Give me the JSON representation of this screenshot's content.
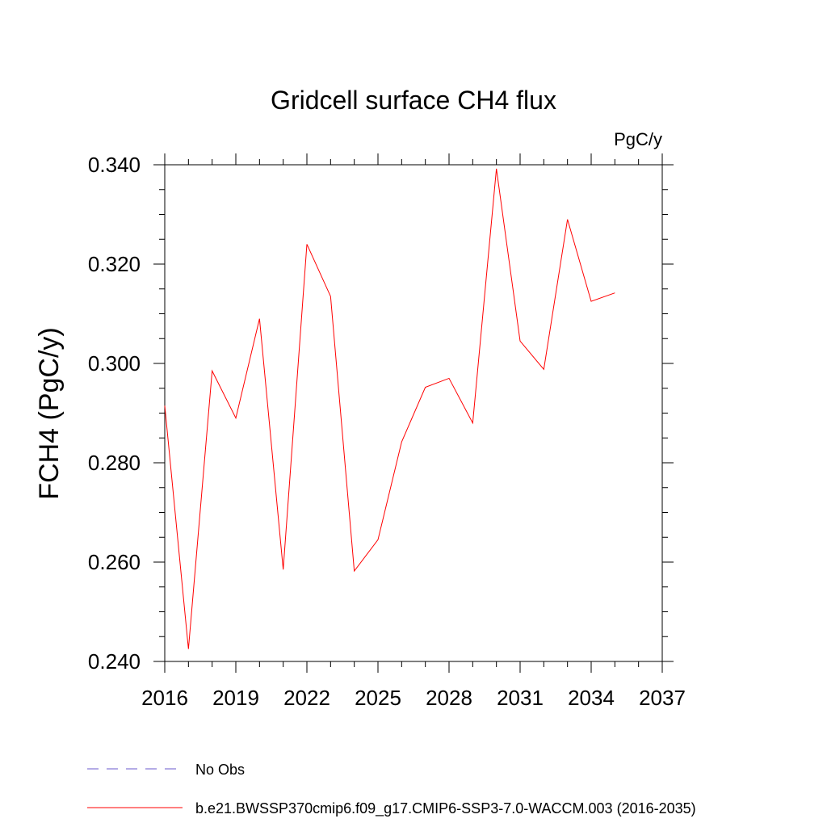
{
  "chart_data": {
    "type": "line",
    "title": "Gridcell surface CH4 flux",
    "units": "PgC/y",
    "ylabel": "FCH4  (PgC/y)",
    "xlabel": "",
    "xlim": [
      2016,
      2037
    ],
    "ylim": [
      0.24,
      0.34
    ],
    "x_ticks": [
      "2016",
      "2019",
      "2022",
      "2025",
      "2028",
      "2031",
      "2034",
      "2037"
    ],
    "y_ticks": [
      "0.240",
      "0.260",
      "0.280",
      "0.300",
      "0.320",
      "0.340"
    ],
    "grid": false,
    "legend_position": "bottom-left",
    "series": [
      {
        "name": "b.e21.BWSSP370cmip6.f09_g17.CMIP6-SSP3-7.0-WACCM.003 (2016-2035)",
        "color": "#ff0000",
        "style": "solid",
        "x": [
          2016,
          2017,
          2018,
          2019,
          2020,
          2021,
          2022,
          2023,
          2024,
          2025,
          2026,
          2027,
          2028,
          2029,
          2030,
          2031,
          2032,
          2033,
          2034,
          2035
        ],
        "y": [
          0.2915,
          0.2425,
          0.2985,
          0.289,
          0.309,
          0.2585,
          0.324,
          0.3135,
          0.2582,
          0.2645,
          0.2842,
          0.2952,
          0.297,
          0.288,
          0.3392,
          0.3045,
          0.2988,
          0.329,
          0.3125,
          0.3142
        ]
      },
      {
        "name": "No Obs",
        "color": "#6a5acd",
        "style": "dashed",
        "x": [],
        "y": []
      }
    ]
  }
}
